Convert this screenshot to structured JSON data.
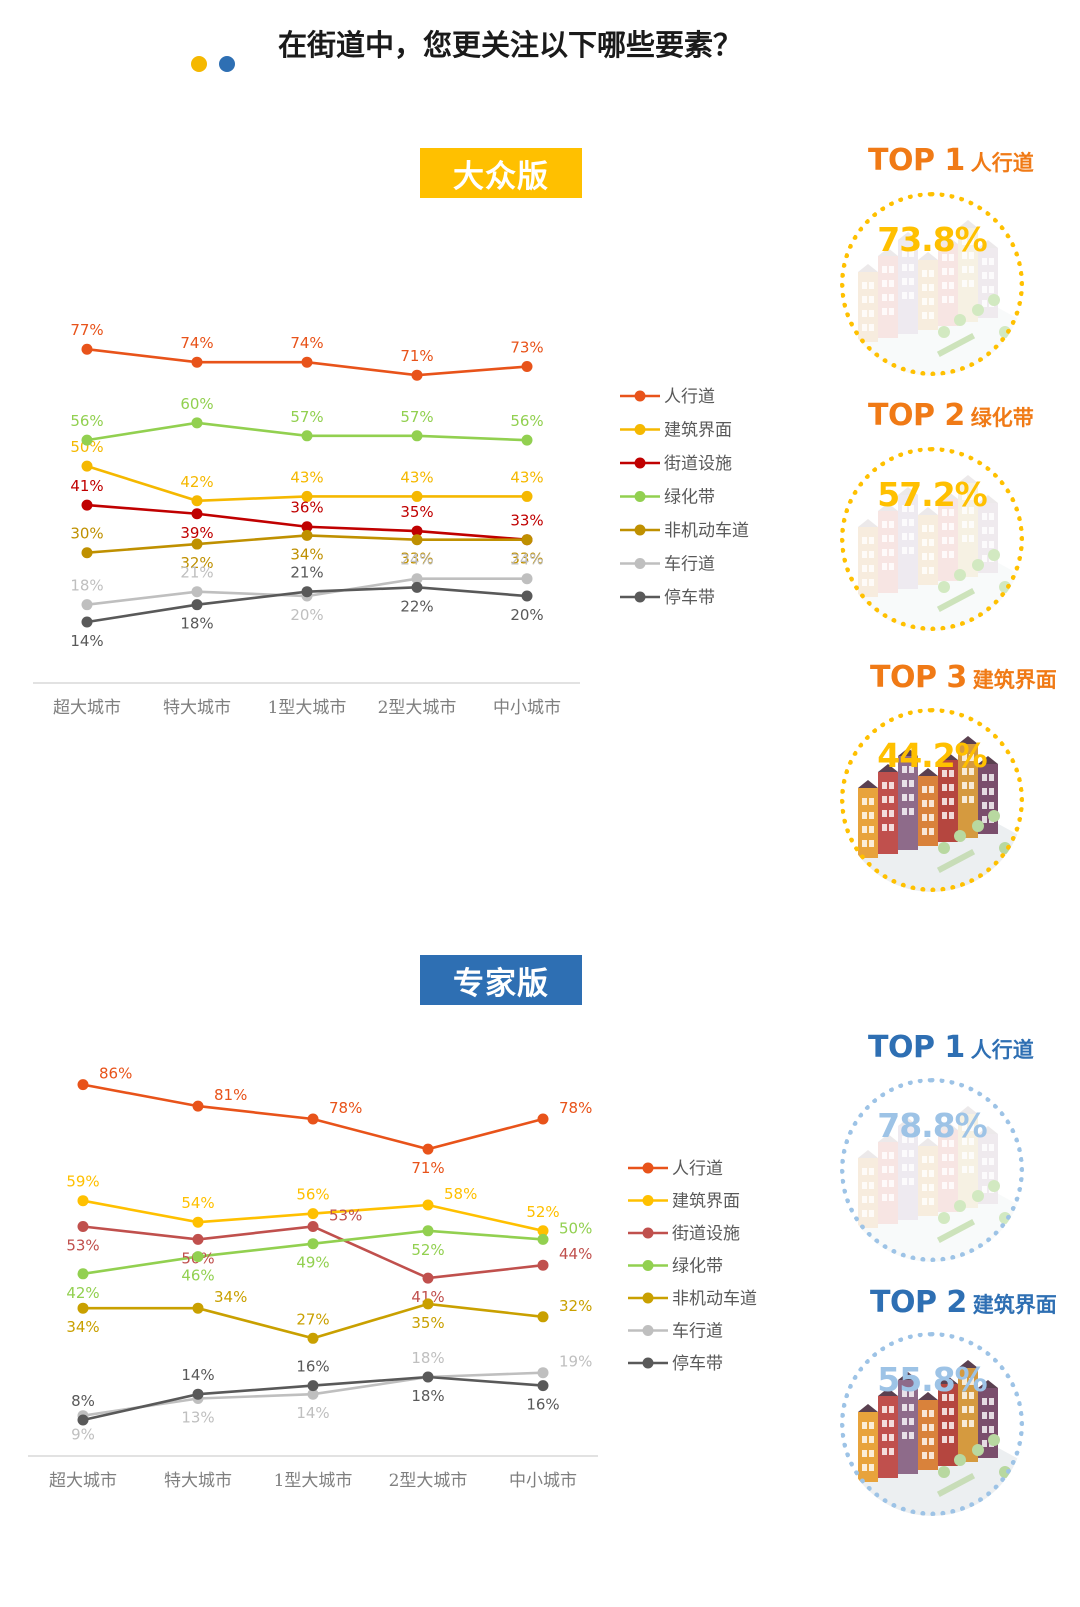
{
  "header": {
    "title": "在街道中，您更关注以下哪些要素？"
  },
  "colors": {
    "accent_yellow": "#F5B800",
    "accent_blue": "#2E6FB3",
    "top_orange": "#F07A16",
    "top_blue": "#2E6FB3",
    "pct_yellow": "#FFC000",
    "pct_lightblue": "#9DC3E6"
  },
  "public": {
    "badge": "大众版",
    "top": [
      {
        "rank": "TOP 1",
        "name": "人行道",
        "pct": "73.8%",
        "icon": "street-illustration-faded"
      },
      {
        "rank": "TOP 2",
        "name": "绿化带",
        "pct": "57.2%",
        "icon": "street-illustration-faded"
      },
      {
        "rank": "TOP 3",
        "name": "建筑界面",
        "pct": "44.2%",
        "icon": "street-illustration-colored"
      }
    ]
  },
  "expert": {
    "badge": "专家版",
    "top": [
      {
        "rank": "TOP 1",
        "name": "人行道",
        "pct": "78.8%",
        "icon": "street-illustration-faded"
      },
      {
        "rank": "TOP 2",
        "name": "建筑界面",
        "pct": "55.8%",
        "icon": "street-illustration-colored"
      }
    ]
  },
  "chart_data": [
    {
      "type": "line",
      "categories": [
        "超大城市",
        "特大城市",
        "1型大城市",
        "2型大城市",
        "中小城市"
      ],
      "ylim": [
        0,
        100
      ],
      "grid": false,
      "legend_position": "right",
      "series": [
        {
          "name": "人行道",
          "color": "#E8531A",
          "values": [
            77,
            74,
            74,
            71,
            73
          ],
          "labels": [
            "77%",
            "74%",
            "74%",
            "71%",
            "73%"
          ],
          "label_pos": [
            "above",
            "above",
            "above",
            "above",
            "above"
          ]
        },
        {
          "name": "建筑界面",
          "color": "#F5B800",
          "values": [
            50,
            42,
            43,
            43,
            43
          ],
          "labels": [
            "50%",
            "42%",
            "43%",
            "43%",
            "43%"
          ],
          "label_pos": [
            "above",
            "above",
            "above",
            "above",
            "above"
          ]
        },
        {
          "name": "街道设施",
          "color": "#C00000",
          "values": [
            41,
            39,
            36,
            35,
            33
          ],
          "labels": [
            "41%",
            "39%",
            "36%",
            "35%",
            "33%"
          ],
          "label_pos": [
            "above",
            "below",
            "above",
            "above",
            "above"
          ]
        },
        {
          "name": "绿化带",
          "color": "#92D050",
          "values": [
            56,
            60,
            57,
            57,
            56
          ],
          "labels": [
            "56%",
            "60%",
            "57%",
            "57%",
            "56%"
          ],
          "label_pos": [
            "above",
            "above",
            "above",
            "above",
            "above"
          ]
        },
        {
          "name": "非机动车道",
          "color": "#BF9000",
          "values": [
            30,
            32,
            34,
            33,
            33
          ],
          "labels": [
            "30%",
            "32%",
            "34%",
            "33%",
            "33%"
          ],
          "label_pos": [
            "above",
            "below",
            "below",
            "below",
            "below"
          ]
        },
        {
          "name": "车行道",
          "color": "#BFBFBF",
          "values": [
            18,
            21,
            20,
            24,
            24
          ],
          "labels": [
            "18%",
            "21%",
            "20%",
            "24%",
            "24%"
          ],
          "label_pos": [
            "above",
            "above",
            "below",
            "above",
            "above"
          ]
        },
        {
          "name": "停车带",
          "color": "#595959",
          "values": [
            14,
            18,
            21,
            22,
            20
          ],
          "labels": [
            "14%",
            "18%",
            "21%",
            "22%",
            "20%"
          ],
          "label_pos": [
            "below",
            "below",
            "above",
            "below",
            "below"
          ]
        }
      ]
    },
    {
      "type": "line",
      "categories": [
        "超大城市",
        "特大城市",
        "1型大城市",
        "2型大城市",
        "中小城市"
      ],
      "ylim": [
        0,
        100
      ],
      "grid": false,
      "legend_position": "right",
      "series": [
        {
          "name": "人行道",
          "color": "#E8531A",
          "values": [
            86,
            81,
            78,
            71,
            78
          ],
          "labels": [
            "86%",
            "81%",
            "78%",
            "71%",
            "78%"
          ],
          "label_pos": [
            "right",
            "right",
            "right",
            "below",
            "right"
          ]
        },
        {
          "name": "建筑界面",
          "color": "#FFC000",
          "values": [
            59,
            54,
            56,
            58,
            52
          ],
          "labels": [
            "59%",
            "54%",
            "56%",
            "58%",
            "52%"
          ],
          "label_pos": [
            "above",
            "above",
            "above",
            "right",
            "above"
          ]
        },
        {
          "name": "街道设施",
          "color": "#C0504D",
          "values": [
            53,
            50,
            53,
            41,
            44
          ],
          "labels": [
            "53%",
            "50%",
            "53%",
            "41%",
            "44%"
          ],
          "label_pos": [
            "below",
            "below",
            "right",
            "below",
            "right"
          ]
        },
        {
          "name": "绿化带",
          "color": "#92D050",
          "values": [
            42,
            46,
            49,
            52,
            50
          ],
          "labels": [
            "42%",
            "46%",
            "49%",
            "52%",
            "50%"
          ],
          "label_pos": [
            "below",
            "below",
            "below",
            "below",
            "right"
          ]
        },
        {
          "name": "非机动车道",
          "color": "#C9A000",
          "values": [
            34,
            34,
            27,
            35,
            32
          ],
          "labels": [
            "34%",
            "34%",
            "27%",
            "35%",
            "32%"
          ],
          "label_pos": [
            "below",
            "right",
            "above",
            "below",
            "right"
          ]
        },
        {
          "name": "车行道",
          "color": "#BFBFBF",
          "values": [
            9,
            13,
            14,
            18,
            19
          ],
          "labels": [
            "9%",
            "13%",
            "14%",
            "18%",
            "19%"
          ],
          "label_pos": [
            "below",
            "below",
            "below",
            "above",
            "right"
          ]
        },
        {
          "name": "停车带",
          "color": "#595959",
          "values": [
            8,
            14,
            16,
            18,
            16
          ],
          "labels": [
            "8%",
            "14%",
            "16%",
            "18%",
            "16%"
          ],
          "label_pos": [
            "above",
            "above",
            "above",
            "below",
            "below"
          ]
        }
      ]
    }
  ]
}
